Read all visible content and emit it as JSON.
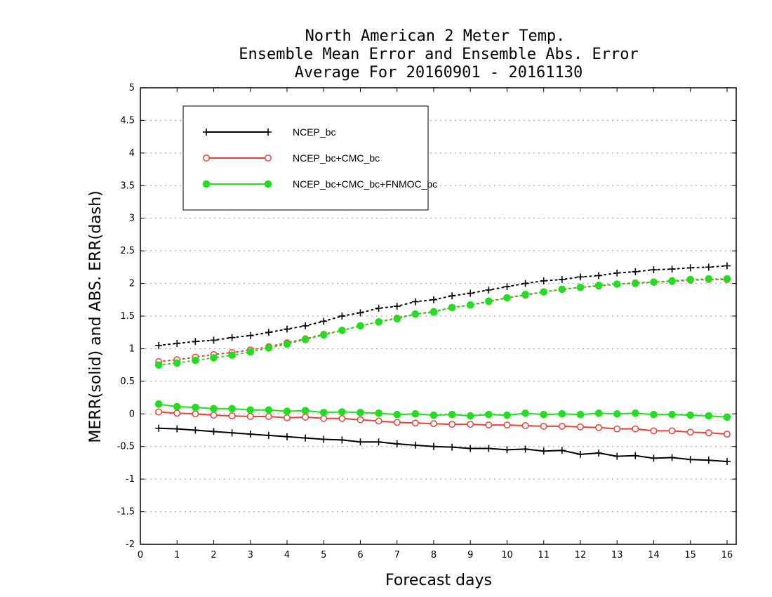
{
  "chart_data": {
    "type": "line",
    "title": [
      "North American 2 Meter Temp.",
      "Ensemble Mean Error and Ensemble Abs. Error",
      "Average For 20160901 - 20161130"
    ],
    "xlabel": "Forecast days",
    "ylabel": "MERR(solid) and ABS. ERR(dash)",
    "xlim": [
      0,
      16.25
    ],
    "ylim": [
      -2,
      5
    ],
    "x_ticks": [
      0,
      1,
      2,
      3,
      4,
      5,
      6,
      7,
      8,
      9,
      10,
      11,
      12,
      13,
      14,
      15,
      16
    ],
    "y_ticks": [
      -2,
      -1.5,
      -1,
      -0.5,
      0,
      0.5,
      1,
      1.5,
      2,
      2.5,
      3,
      3.5,
      4,
      4.5,
      5
    ],
    "y_tick_labels": [
      "-2",
      "-1.5",
      "-1",
      "-0.5",
      "0",
      "0.5",
      "1",
      "1.5",
      "2",
      "2.5",
      "3",
      "3.5",
      "4",
      "4.5",
      "5"
    ],
    "grid": "horizontal dotted",
    "legend_position": "top-left",
    "x": [
      0.5,
      1,
      1.5,
      2,
      2.5,
      3,
      3.5,
      4,
      4.5,
      5,
      5.5,
      6,
      6.5,
      7,
      7.5,
      8,
      8.5,
      9,
      9.5,
      10,
      10.5,
      11,
      11.5,
      12,
      12.5,
      13,
      13.5,
      14,
      14.5,
      15,
      15.5,
      16
    ],
    "series": [
      {
        "name": "NCEP_bc",
        "color": "#000000",
        "marker": "plus",
        "merr": [
          -0.22,
          -0.23,
          -0.25,
          -0.27,
          -0.29,
          -0.31,
          -0.33,
          -0.35,
          -0.37,
          -0.39,
          -0.4,
          -0.43,
          -0.43,
          -0.46,
          -0.48,
          -0.5,
          -0.51,
          -0.53,
          -0.53,
          -0.55,
          -0.54,
          -0.57,
          -0.56,
          -0.62,
          -0.6,
          -0.65,
          -0.64,
          -0.68,
          -0.67,
          -0.7,
          -0.71,
          -0.73
        ],
        "abs_err": [
          1.05,
          1.08,
          1.11,
          1.13,
          1.17,
          1.2,
          1.25,
          1.3,
          1.35,
          1.42,
          1.5,
          1.55,
          1.62,
          1.65,
          1.72,
          1.75,
          1.81,
          1.85,
          1.9,
          1.95,
          2.0,
          2.04,
          2.06,
          2.1,
          2.12,
          2.16,
          2.18,
          2.21,
          2.22,
          2.24,
          2.25,
          2.27
        ]
      },
      {
        "name": "NCEP_bc+CMC_bc",
        "color": "#e8413a",
        "marker": "open-circle",
        "merr": [
          0.03,
          0.01,
          0.0,
          -0.02,
          -0.03,
          -0.04,
          -0.04,
          -0.06,
          -0.05,
          -0.07,
          -0.07,
          -0.09,
          -0.11,
          -0.13,
          -0.14,
          -0.15,
          -0.16,
          -0.16,
          -0.17,
          -0.17,
          -0.18,
          -0.19,
          -0.19,
          -0.2,
          -0.21,
          -0.23,
          -0.23,
          -0.26,
          -0.26,
          -0.28,
          -0.29,
          -0.31
        ],
        "abs_err": [
          0.8,
          0.83,
          0.87,
          0.91,
          0.94,
          0.98,
          1.03,
          1.09,
          1.15,
          1.22,
          1.28,
          1.35,
          1.41,
          1.47,
          1.53,
          1.57,
          1.63,
          1.67,
          1.72,
          1.78,
          1.82,
          1.87,
          1.91,
          1.94,
          1.96,
          1.99,
          2.01,
          2.02,
          2.03,
          2.05,
          2.06,
          2.06
        ]
      },
      {
        "name": "NCEP_bc+CMC_bc+FNMOC_bc",
        "color": "#22dd22",
        "marker": "filled-circle",
        "merr": [
          0.15,
          0.11,
          0.1,
          0.08,
          0.08,
          0.06,
          0.06,
          0.04,
          0.05,
          0.02,
          0.03,
          0.02,
          0.01,
          -0.01,
          0.0,
          -0.02,
          -0.01,
          -0.03,
          -0.01,
          -0.02,
          0.01,
          -0.01,
          0.0,
          -0.01,
          0.01,
          0.0,
          0.01,
          -0.01,
          -0.01,
          -0.02,
          -0.03,
          -0.05
        ],
        "abs_err": [
          0.75,
          0.78,
          0.82,
          0.86,
          0.9,
          0.95,
          1.01,
          1.07,
          1.14,
          1.21,
          1.28,
          1.35,
          1.41,
          1.46,
          1.53,
          1.56,
          1.63,
          1.67,
          1.73,
          1.78,
          1.83,
          1.87,
          1.91,
          1.94,
          1.97,
          1.99,
          2.0,
          2.02,
          2.04,
          2.06,
          2.07,
          2.07
        ]
      }
    ]
  }
}
